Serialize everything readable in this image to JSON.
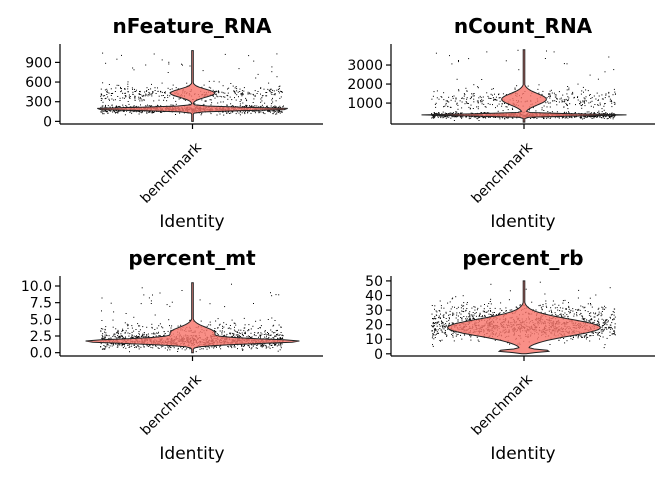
{
  "chart_data": [
    {
      "type": "violin",
      "title": "nFeature_RNA",
      "xlabel": "Identity",
      "categories": [
        "benchmark"
      ],
      "yticks": [
        0,
        300,
        600,
        900
      ],
      "ylim": [
        -40,
        1150
      ],
      "jitter": {
        "center": 190,
        "spread": 70,
        "upper_cloud": 430,
        "upper_spread": 120,
        "max": 1080,
        "min": 0
      },
      "violin_color": "#F8766D",
      "point_color": "#000000"
    },
    {
      "type": "violin",
      "title": "nCount_RNA",
      "xlabel": "Identity",
      "categories": [
        "benchmark"
      ],
      "yticks": [
        1000,
        2000,
        3000
      ],
      "ylim": [
        -100,
        4000
      ],
      "jitter": {
        "center": 380,
        "spread": 160,
        "upper_cloud": 1200,
        "upper_spread": 600,
        "max": 3800,
        "min": 0
      },
      "violin_color": "#F8766D",
      "point_color": "#000000"
    },
    {
      "type": "violin",
      "title": "percent_mt",
      "xlabel": "Identity",
      "categories": [
        "benchmark"
      ],
      "yticks": [
        0.0,
        2.5,
        5.0,
        7.5,
        10.0
      ],
      "tick_labels": [
        "0.0",
        "2.5",
        "5.0",
        "7.5",
        "10.0"
      ],
      "ylim": [
        -0.5,
        11.2
      ],
      "jitter": {
        "center": 1.7,
        "spread": 1.1,
        "upper_cloud": 3.0,
        "upper_spread": 1.6,
        "max": 10.5,
        "min": 0
      },
      "violin_color": "#F8766D",
      "point_color": "#000000"
    },
    {
      "type": "violin",
      "title": "percent_rb",
      "xlabel": "Identity",
      "categories": [
        "benchmark"
      ],
      "yticks": [
        0,
        10,
        20,
        30,
        40,
        50
      ],
      "ylim": [
        -1.5,
        52
      ],
      "jitter": {
        "center": 18,
        "spread": 9,
        "upper_cloud": 28,
        "upper_spread": 8,
        "max": 50,
        "min": 0
      },
      "violin_color": "#F8766D",
      "point_color": "#000000"
    }
  ]
}
